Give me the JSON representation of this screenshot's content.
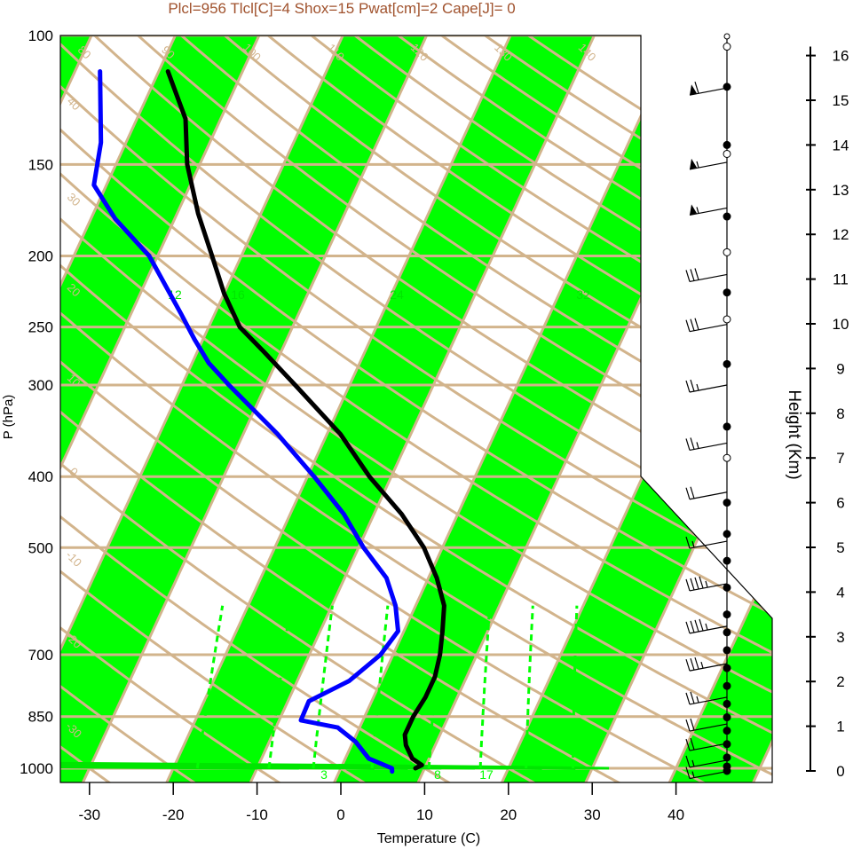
{
  "chart_data": {
    "type": "skew-t",
    "title": "Plcl=956 Tlcl[C]=4 Shox=15 Pwat[cm]=2 Cape[J]= 0",
    "xlabel": "Temperature (C)",
    "ylabel": "P (hPa)",
    "height_label": "Height (Km)",
    "x_ticks": [
      "-30",
      "-20",
      "-10",
      "0",
      "10",
      "20",
      "30",
      "40"
    ],
    "x_tick_values": [
      -30,
      -20,
      -10,
      0,
      10,
      20,
      30,
      40
    ],
    "pressure_ticks": [
      "100",
      "150",
      "200",
      "250",
      "300",
      "400",
      "500",
      "700",
      "850",
      "1000"
    ],
    "pressure_tick_values": [
      100,
      150,
      200,
      250,
      300,
      400,
      500,
      700,
      850,
      1000
    ],
    "height_ticks": [
      "0",
      "1",
      "2",
      "3",
      "4",
      "5",
      "6",
      "7",
      "8",
      "9",
      "10",
      "11",
      "12",
      "13",
      "14",
      "15",
      "16"
    ],
    "height_tick_values": [
      0,
      1,
      2,
      3,
      4,
      5,
      6,
      7,
      8,
      9,
      10,
      11,
      12,
      13,
      14,
      15,
      16
    ],
    "colors": {
      "title": "#a0522d",
      "isotherm_band": "#00ff00",
      "reference_lines": "#d2b48c",
      "temperature": "#000000",
      "dewpoint": "#0000ff",
      "mixing_ratio": "#00ff00",
      "moist_adiabat": "#00e600"
    },
    "isotherm_labels_top": [
      "50",
      "60",
      "70",
      "80",
      "90",
      "100",
      "110",
      "120",
      "130",
      "140",
      "150",
      "160"
    ],
    "isotherm_labels_right": [
      "30",
      "20",
      "10",
      "0"
    ],
    "isotherm_labels_lower_right": [
      "10",
      "20",
      "30"
    ],
    "isotherm_labels_left": [
      "40",
      "30",
      "20",
      "10",
      "0",
      "-10",
      "-20",
      "-30"
    ],
    "moist_adiabat_labels": [
      "12",
      "16",
      "24",
      "32"
    ],
    "mixing_ratio_labels": [
      "3",
      "8",
      "17"
    ],
    "temperature_profile": [
      {
        "p": 1000,
        "t": 8.9
      },
      {
        "p": 990,
        "t": 9.5
      },
      {
        "p": 970,
        "t": 8.0
      },
      {
        "p": 930,
        "t": 6.5
      },
      {
        "p": 900,
        "t": 5.8
      },
      {
        "p": 850,
        "t": 5.8
      },
      {
        "p": 800,
        "t": 6.2
      },
      {
        "p": 750,
        "t": 6.2
      },
      {
        "p": 700,
        "t": 5.6
      },
      {
        "p": 650,
        "t": 4.6
      },
      {
        "p": 600,
        "t": 3.4
      },
      {
        "p": 550,
        "t": 1.0
      },
      {
        "p": 500,
        "t": -2.2
      },
      {
        "p": 450,
        "t": -6.7
      },
      {
        "p": 400,
        "t": -12.6
      },
      {
        "p": 350,
        "t": -18.4
      },
      {
        "p": 300,
        "t": -26.5
      },
      {
        "p": 270,
        "t": -32.1
      },
      {
        "p": 250,
        "t": -36.3
      },
      {
        "p": 225,
        "t": -40.0
      },
      {
        "p": 200,
        "t": -43.5
      },
      {
        "p": 175,
        "t": -47.5
      },
      {
        "p": 150,
        "t": -51.5
      },
      {
        "p": 130,
        "t": -54.2
      },
      {
        "p": 112,
        "t": -58.9
      }
    ],
    "dewpoint_profile": [
      {
        "p": 1010,
        "t": 6.3
      },
      {
        "p": 1000,
        "t": 6.1
      },
      {
        "p": 970,
        "t": 2.8
      },
      {
        "p": 920,
        "t": 0.3
      },
      {
        "p": 880,
        "t": -2.6
      },
      {
        "p": 860,
        "t": -7.4
      },
      {
        "p": 810,
        "t": -7.5
      },
      {
        "p": 760,
        "t": -3.8
      },
      {
        "p": 700,
        "t": -1.5
      },
      {
        "p": 650,
        "t": -0.7
      },
      {
        "p": 600,
        "t": -2.4
      },
      {
        "p": 550,
        "t": -5.0
      },
      {
        "p": 500,
        "t": -9.4
      },
      {
        "p": 450,
        "t": -13.6
      },
      {
        "p": 400,
        "t": -19.2
      },
      {
        "p": 350,
        "t": -25.9
      },
      {
        "p": 300,
        "t": -34.4
      },
      {
        "p": 280,
        "t": -38.0
      },
      {
        "p": 260,
        "t": -41.0
      },
      {
        "p": 240,
        "t": -44.0
      },
      {
        "p": 200,
        "t": -51.0
      },
      {
        "p": 178,
        "t": -57.1
      },
      {
        "p": 160,
        "t": -61.5
      },
      {
        "p": 140,
        "t": -63.0
      },
      {
        "p": 112,
        "t": -67.0
      }
    ],
    "wind_barbs": [
      {
        "p": 118,
        "speed": 60
      },
      {
        "p": 149,
        "speed": 55
      },
      {
        "p": 172,
        "speed": 55
      },
      {
        "p": 212,
        "speed": 30
      },
      {
        "p": 248,
        "speed": 30
      },
      {
        "p": 300,
        "speed": 25
      },
      {
        "p": 360,
        "speed": 25
      },
      {
        "p": 420,
        "speed": 20
      },
      {
        "p": 490,
        "speed": 15
      },
      {
        "p": 560,
        "speed": 45
      },
      {
        "p": 640,
        "speed": 45
      },
      {
        "p": 720,
        "speed": 35
      },
      {
        "p": 800,
        "speed": 25
      },
      {
        "p": 870,
        "speed": 20
      },
      {
        "p": 925,
        "speed": 20
      },
      {
        "p": 975,
        "speed": 15
      },
      {
        "p": 1010,
        "speed": 15
      }
    ],
    "height_markers": [
      {
        "km": 16.2,
        "open": true
      },
      {
        "km": 15.3
      },
      {
        "km": 14.0
      },
      {
        "km": 13.8,
        "open": true
      },
      {
        "km": 12.4
      },
      {
        "km": 11.6,
        "open": true
      },
      {
        "km": 10.7
      },
      {
        "km": 10.1,
        "open": true
      },
      {
        "km": 9.1
      },
      {
        "km": 7.7
      },
      {
        "km": 7.0,
        "open": true
      },
      {
        "km": 6.0
      },
      {
        "km": 5.3
      },
      {
        "km": 4.7
      },
      {
        "km": 4.1
      },
      {
        "km": 3.5
      },
      {
        "km": 3.1
      },
      {
        "km": 2.7
      },
      {
        "km": 2.3
      },
      {
        "km": 1.9
      },
      {
        "km": 1.5
      },
      {
        "km": 1.2
      },
      {
        "km": 0.9
      },
      {
        "km": 0.6
      },
      {
        "km": 0.3
      },
      {
        "km": 0.1
      },
      {
        "km": 0.0
      }
    ]
  }
}
